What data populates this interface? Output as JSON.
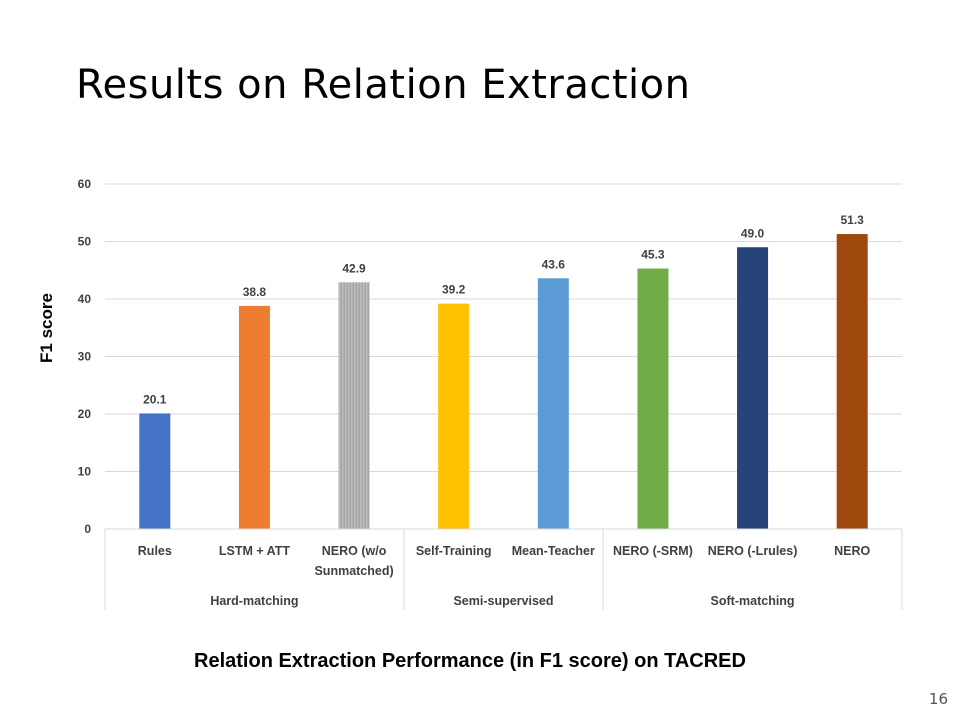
{
  "slide": {
    "title": "Results on Relation Extraction",
    "caption": "Relation Extraction Performance (in F1 score) on TACRED",
    "page_number": "16"
  },
  "chart_data": {
    "type": "bar",
    "title": "",
    "xlabel": "",
    "ylabel": "F1 score",
    "ylim": [
      0,
      60
    ],
    "yticks": [
      0,
      10,
      20,
      30,
      40,
      50,
      60
    ],
    "grid": true,
    "legend": "none",
    "categories": [
      {
        "label_lines": [
          "Rules"
        ],
        "value": 20.1,
        "value_label": "20.1",
        "color": "#4472C4",
        "pattern": "solid"
      },
      {
        "label_lines": [
          "LSTM + ATT"
        ],
        "value": 38.8,
        "value_label": "38.8",
        "color": "#ED7D31",
        "pattern": "solid"
      },
      {
        "label_lines": [
          "NERO (w/o",
          "Sunmatched)"
        ],
        "value": 42.9,
        "value_label": "42.9",
        "color": "#A5A5A5",
        "pattern": "striped"
      },
      {
        "label_lines": [
          "Self-Training"
        ],
        "value": 39.2,
        "value_label": "39.2",
        "color": "#FFC000",
        "pattern": "solid"
      },
      {
        "label_lines": [
          "Mean-Teacher"
        ],
        "value": 43.6,
        "value_label": "43.6",
        "color": "#5B9BD5",
        "pattern": "solid"
      },
      {
        "label_lines": [
          "NERO (-SRM)"
        ],
        "value": 45.3,
        "value_label": "45.3",
        "color": "#70AD47",
        "pattern": "solid"
      },
      {
        "label_lines": [
          "NERO (-Lrules)"
        ],
        "value": 49.0,
        "value_label": "49.0",
        "color": "#264478",
        "pattern": "solid"
      },
      {
        "label_lines": [
          "NERO"
        ],
        "value": 51.3,
        "value_label": "51.3",
        "color": "#9E480E",
        "pattern": "solid"
      }
    ],
    "groups": [
      {
        "label": "Hard-matching",
        "count": 3
      },
      {
        "label": "Semi-supervised",
        "count": 2
      },
      {
        "label": "Soft-matching",
        "count": 3
      }
    ]
  }
}
